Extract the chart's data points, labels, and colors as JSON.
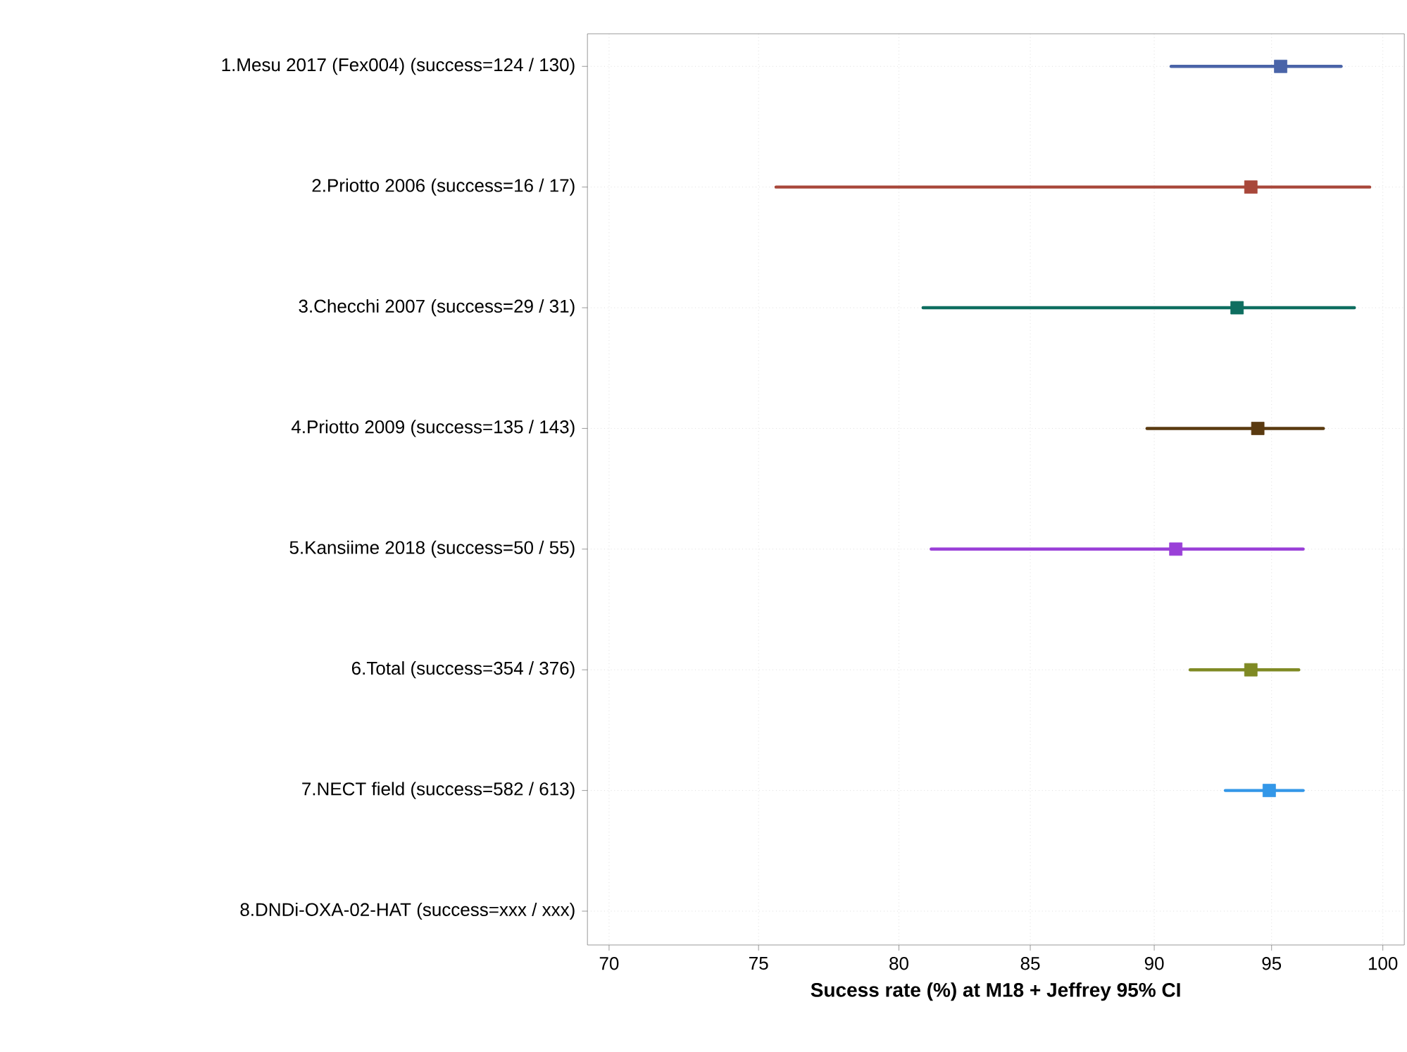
{
  "chart_data": {
    "type": "scatter",
    "orientation": "horizontal",
    "log": "x",
    "grid": true,
    "marker": "square",
    "xlabel": "Sucess rate (%) at M18 + Jeffrey 95% CI",
    "categories": [
      "1.Mesu 2017 (Fex004) (success=124 / 130)",
      "2.Priotto 2006 (success=16 / 17)",
      "3.Checchi 2007 (success=29 / 31)",
      "4.Priotto 2009 (success=135 / 143)",
      "5.Kansiime 2018 (success=50 / 55)",
      "6.Total (success=354 / 376)",
      "7.NECT field (success=582 / 613)",
      "8.DNDi-OXA-02-HAT (success=xxx / xxx)"
    ],
    "values": [
      95.4,
      94.1,
      93.5,
      94.4,
      90.9,
      94.1,
      94.9,
      null
    ],
    "errors": [
      [
        90.7,
        98.1
      ],
      [
        75.6,
        99.4
      ],
      [
        80.9,
        98.7
      ],
      [
        89.7,
        97.3
      ],
      [
        81.2,
        96.4
      ],
      [
        91.5,
        96.2
      ],
      [
        93.0,
        96.4
      ],
      null
    ],
    "colors": [
      "#4a64a8",
      "#a8473a",
      "#0e6e60",
      "#5a3a10",
      "#9a40d8",
      "#7f8a24",
      "#3397e8",
      null
    ],
    "xlim": [
      69.3,
      101
    ],
    "xticks": [
      70,
      75,
      80,
      85,
      90,
      95,
      100
    ]
  }
}
